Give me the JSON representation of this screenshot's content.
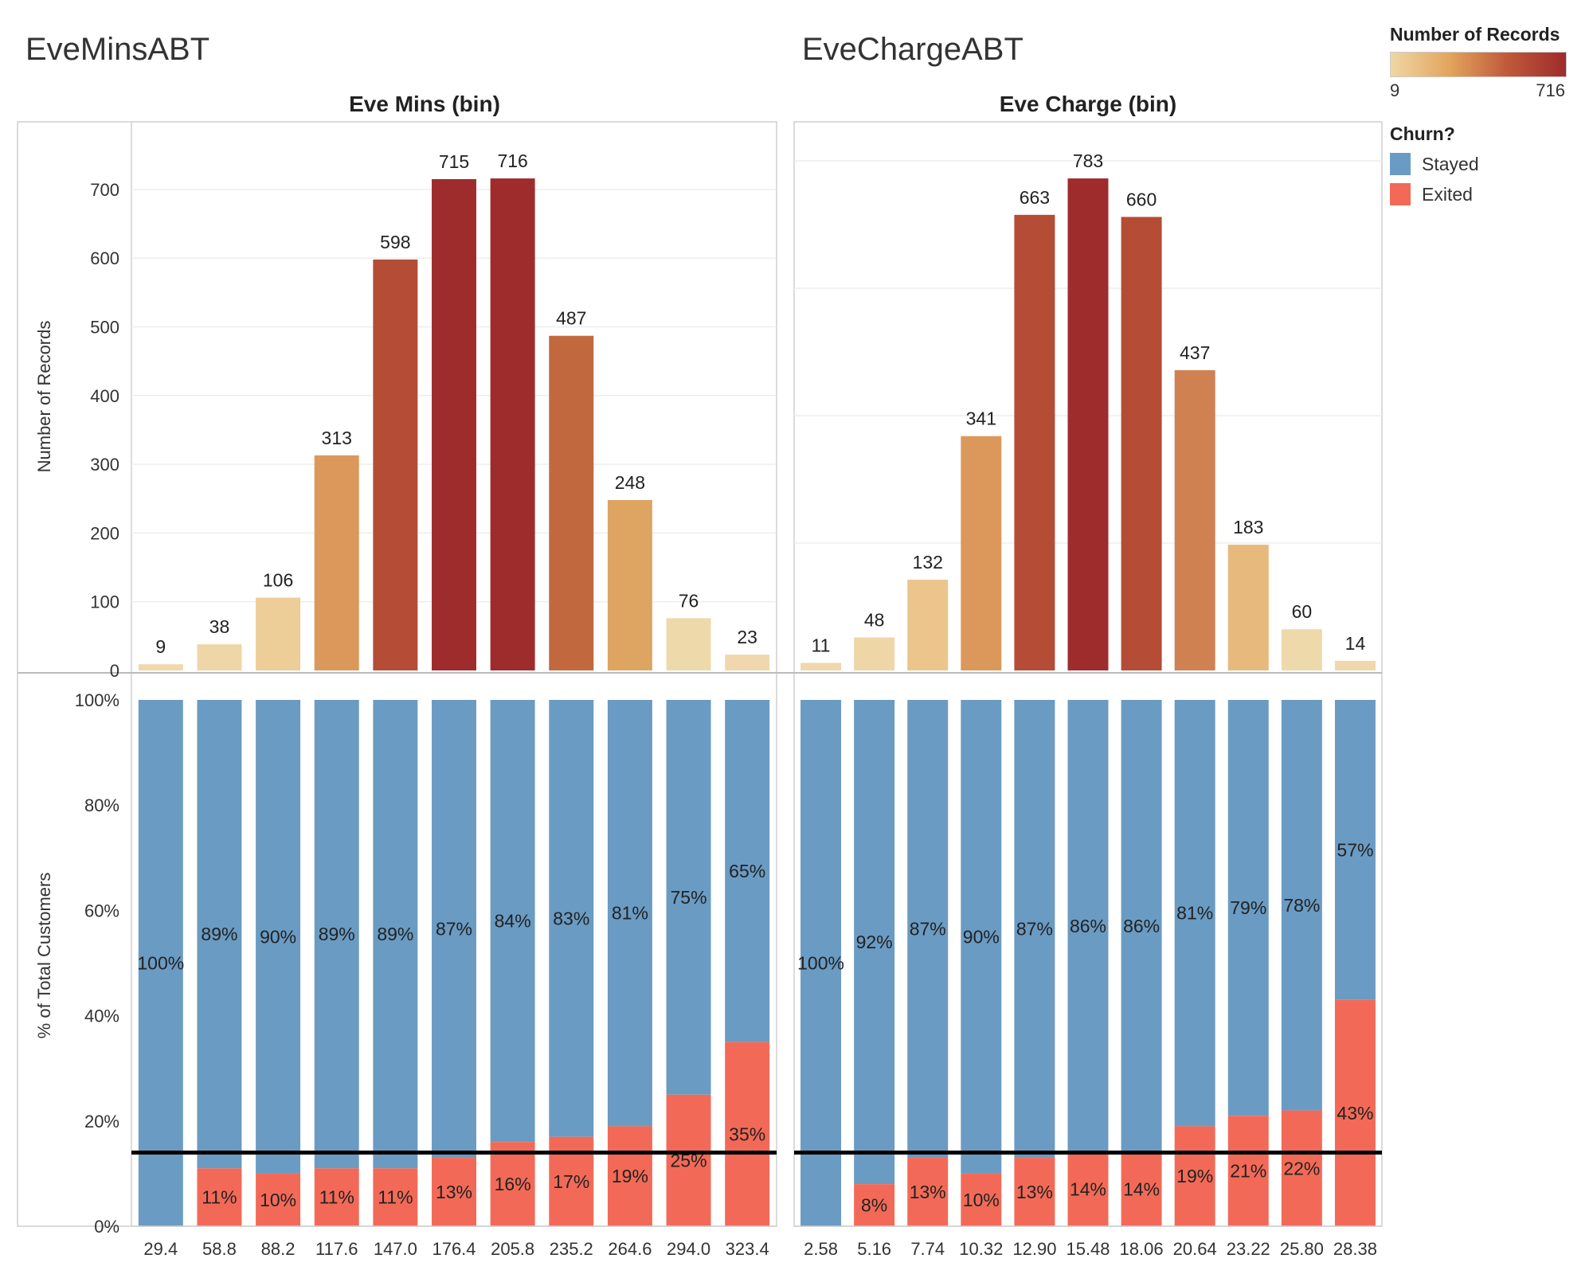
{
  "dashboard": {
    "left_title": "EveMinsABT",
    "right_title": "EveChargeABT"
  },
  "legend": {
    "color_title": "Number of Records",
    "color_min": "9",
    "color_max": "716",
    "color_ramp": [
      "#efd7a5",
      "#e3a55d",
      "#c0593a",
      "#9e2c2c"
    ],
    "churn_title": "Churn?",
    "items": [
      {
        "label": "Stayed",
        "color": "#6a9bc3"
      },
      {
        "label": "Exited",
        "color": "#f26a57"
      }
    ]
  },
  "chart_data": [
    {
      "type": "bar",
      "title": "Eve Mins (bin)",
      "xlabel": "",
      "ylabel": "Number of Records",
      "ylim": [
        0,
        750
      ],
      "yticks": [
        0,
        100,
        200,
        300,
        400,
        500,
        600,
        700
      ],
      "categories": [
        "29.4",
        "58.8",
        "88.2",
        "117.6",
        "147.0",
        "176.4",
        "205.8",
        "235.2",
        "264.6",
        "294.0",
        "323.4"
      ],
      "values": [
        9,
        38,
        106,
        313,
        598,
        715,
        716,
        487,
        248,
        76,
        23
      ],
      "colors": [
        "#f0d8ac",
        "#efd6a7",
        "#edcd98",
        "#dc985b",
        "#b54c35",
        "#9e2c2c",
        "#9e2c2c",
        "#c2683f",
        "#dea462",
        "#eed9ab",
        "#f0d8ac"
      ],
      "grid": true
    },
    {
      "type": "bar",
      "title": "Eve Charge (bin)",
      "xlabel": "",
      "ylabel": "",
      "ylim": [
        0,
        750
      ],
      "categories": [
        "2.58",
        "5.16",
        "7.74",
        "10.32",
        "12.90",
        "15.48",
        "18.06",
        "20.64",
        "23.22",
        "25.80",
        "28.38"
      ],
      "values": [
        11,
        48,
        132,
        341,
        663,
        783,
        660,
        437,
        183,
        60,
        14
      ],
      "colors": [
        "#f0d8ac",
        "#efd6a7",
        "#ebc58c",
        "#dc985b",
        "#b54c35",
        "#9e2c2c",
        "#b54c35",
        "#cf8152",
        "#e8b97c",
        "#eed9ab",
        "#f0d8ac"
      ],
      "grid": true
    },
    {
      "type": "bar",
      "stacked": true,
      "title": "",
      "xlabel": "",
      "ylabel": "% of Total Customers",
      "ylim": [
        0,
        100
      ],
      "yticks": [
        "0%",
        "20%",
        "40%",
        "60%",
        "80%",
        "100%"
      ],
      "categories": [
        "29.4",
        "58.8",
        "88.2",
        "117.6",
        "147.0",
        "176.4",
        "205.8",
        "235.2",
        "264.6",
        "294.0",
        "323.4"
      ],
      "series": [
        {
          "name": "Stayed",
          "values": [
            100,
            89,
            90,
            89,
            89,
            87,
            84,
            83,
            81,
            75,
            65
          ]
        },
        {
          "name": "Exited",
          "values": [
            0,
            11,
            10,
            11,
            11,
            13,
            16,
            17,
            19,
            25,
            35
          ]
        }
      ],
      "reference_line": 14
    },
    {
      "type": "bar",
      "stacked": true,
      "title": "",
      "xlabel": "",
      "ylabel": "",
      "ylim": [
        0,
        100
      ],
      "categories": [
        "2.58",
        "5.16",
        "7.74",
        "10.32",
        "12.90",
        "15.48",
        "18.06",
        "20.64",
        "23.22",
        "25.80",
        "28.38"
      ],
      "series": [
        {
          "name": "Stayed",
          "values": [
            100,
            92,
            87,
            90,
            87,
            86,
            86,
            81,
            79,
            78,
            57
          ]
        },
        {
          "name": "Exited",
          "values": [
            0,
            8,
            13,
            10,
            13,
            14,
            14,
            19,
            21,
            22,
            43
          ]
        }
      ],
      "reference_line": 14
    }
  ]
}
